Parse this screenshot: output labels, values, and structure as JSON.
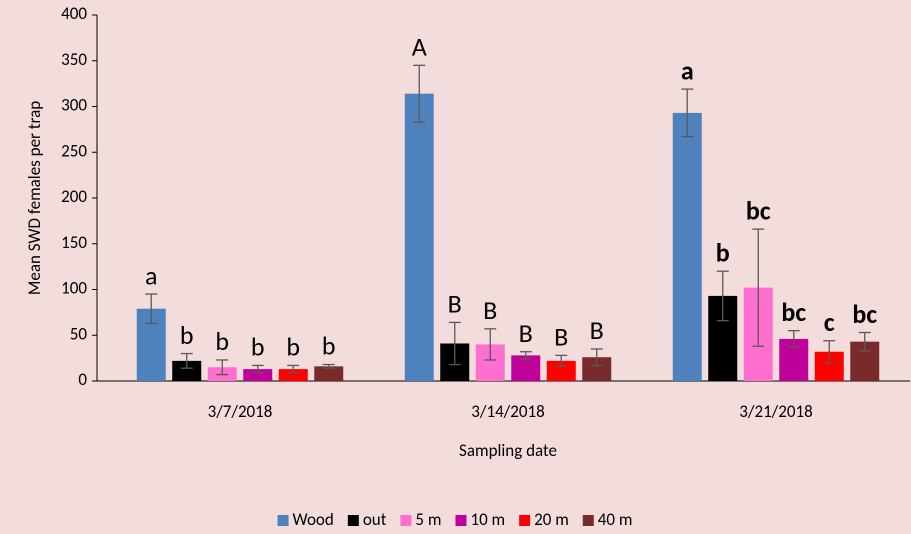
{
  "chart_data": {
    "type": "bar",
    "y_label": "Mean SWD females per trap",
    "x_label": "Sampling date",
    "categories": [
      "3/7/2018",
      "3/14/2018",
      "3/21/2018"
    ],
    "series": [
      {
        "name": "Wood",
        "color": "#4f81bd",
        "values": [
          79,
          314,
          293
        ],
        "errors": [
          16,
          31,
          26
        ],
        "letters": [
          "a",
          "A",
          "a"
        ]
      },
      {
        "name": "out",
        "color": "#000000",
        "values": [
          22,
          41,
          93
        ],
        "errors": [
          8,
          23,
          27
        ],
        "letters": [
          "b",
          "B",
          "b"
        ]
      },
      {
        "name": "5 m",
        "color": "#ff6fcf",
        "values": [
          15,
          40,
          102
        ],
        "errors": [
          8,
          17,
          64
        ],
        "letters": [
          "b",
          "B",
          "bc"
        ]
      },
      {
        "name": "10 m",
        "color": "#c00099",
        "values": [
          13,
          28,
          46
        ],
        "errors": [
          4,
          4,
          9
        ],
        "letters": [
          "b",
          "B",
          "bc"
        ]
      },
      {
        "name": "20 m",
        "color": "#ff0000",
        "values": [
          13,
          22,
          32
        ],
        "errors": [
          4,
          6,
          12
        ],
        "letters": [
          "b",
          "B",
          "c"
        ]
      },
      {
        "name": "40 m",
        "color": "#792a2a",
        "values": [
          16,
          26,
          43
        ],
        "errors": [
          2,
          9,
          10
        ],
        "letters": [
          "b",
          "B",
          "bc"
        ]
      }
    ],
    "letters_bold": [
      false,
      false,
      true
    ],
    "error_color": "#595959",
    "ylim": [
      0,
      400
    ],
    "yticks": [
      0,
      50,
      100,
      150,
      200,
      250,
      300,
      350,
      400
    ],
    "grid": false,
    "legend": "bottom"
  }
}
